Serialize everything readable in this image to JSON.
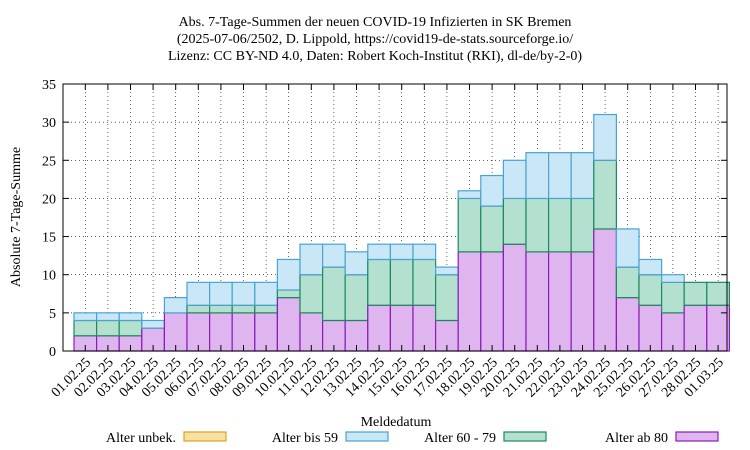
{
  "chart_data": {
    "type": "bar",
    "stacked": true,
    "title_lines": [
      "Abs. 7-Tage-Summen der neuen COVID-19 Infizierten in SK Bremen",
      "(2025-07-06/2502, D. Lippold, https://covid19-de-stats.sourceforge.io/",
      "Lizenz: CC BY-ND 4.0, Daten: Robert Koch-Institut (RKI), dl-de/by-2-0)"
    ],
    "xlabel": "Meldedatum",
    "ylabel": "Absolute 7-Tage-Summe",
    "ylim": [
      0,
      35
    ],
    "yticks": [
      0,
      5,
      10,
      15,
      20,
      25,
      30,
      35
    ],
    "grid": true,
    "legend_position": "bottom",
    "categories": [
      "01.02.25",
      "02.02.25",
      "03.02.25",
      "04.02.25",
      "05.02.25",
      "06.02.25",
      "07.02.25",
      "08.02.25",
      "09.02.25",
      "10.02.25",
      "11.02.25",
      "12.02.25",
      "13.02.25",
      "14.02.25",
      "15.02.25",
      "16.02.25",
      "17.02.25",
      "18.02.25",
      "19.02.25",
      "20.02.25",
      "21.02.25",
      "22.02.25",
      "23.02.25",
      "24.02.25",
      "25.02.25",
      "26.02.25",
      "27.02.25",
      "28.02.25",
      "01.03.25"
    ],
    "series": [
      {
        "name": "Alter ab 80",
        "color": "#dfb5f0",
        "edge": "#8a1bb8",
        "values": [
          2,
          2,
          2,
          3,
          5,
          5,
          5,
          5,
          5,
          7,
          5,
          4,
          4,
          6,
          6,
          6,
          4,
          13,
          13,
          14,
          13,
          13,
          13,
          16,
          7,
          6,
          5,
          6,
          6
        ]
      },
      {
        "name": "Alter 60 - 79",
        "color": "#b3e0cf",
        "edge": "#1c8a5e",
        "values": [
          2,
          2,
          2,
          0,
          0,
          1,
          1,
          1,
          1,
          1,
          5,
          7,
          6,
          6,
          6,
          6,
          6,
          7,
          6,
          6,
          7,
          7,
          7,
          9,
          4,
          4,
          4,
          3,
          3
        ]
      },
      {
        "name": "Alter bis 59",
        "color": "#c9e7f7",
        "edge": "#4aa3d4",
        "values": [
          1,
          1,
          1,
          1,
          2,
          3,
          3,
          3,
          3,
          4,
          4,
          3,
          3,
          2,
          2,
          2,
          1,
          1,
          4,
          5,
          6,
          6,
          6,
          6,
          5,
          2,
          1,
          0,
          0
        ]
      },
      {
        "name": "Alter unbek.",
        "color": "#fbe0a6",
        "edge": "#e0a21c",
        "values": [
          0,
          0,
          0,
          0,
          0,
          0,
          0,
          0,
          0,
          0,
          0,
          0,
          0,
          0,
          0,
          0,
          0,
          0,
          0,
          0,
          0,
          0,
          0,
          0,
          0,
          0,
          0,
          0,
          0
        ]
      }
    ],
    "legend_order": [
      "Alter unbek.",
      "Alter bis 59",
      "Alter 60 - 79",
      "Alter ab 80"
    ]
  }
}
